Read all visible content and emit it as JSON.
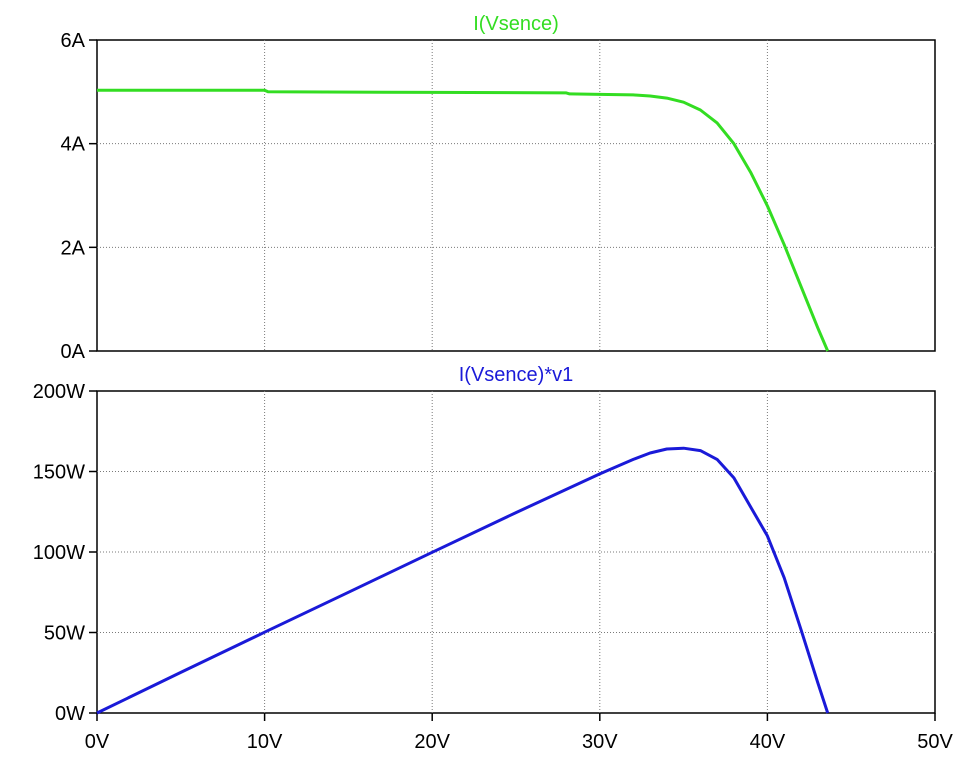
{
  "chart_data": [
    {
      "type": "line",
      "title": "I(Vsence)",
      "title_color": "#33dd22",
      "grid": true,
      "xlim": [
        0,
        50
      ],
      "ylim": [
        0,
        6
      ],
      "y_ticks": [
        {
          "value": 0,
          "label": "0A"
        },
        {
          "value": 2,
          "label": "2A"
        },
        {
          "value": 4,
          "label": "4A"
        },
        {
          "value": 6,
          "label": "6A"
        }
      ],
      "series": [
        {
          "color": "#33dd22",
          "x": [
            0,
            10,
            10.2,
            20,
            28,
            28.2,
            30,
            32,
            33,
            34,
            35,
            36,
            37,
            38,
            39,
            40,
            41,
            42,
            43,
            43.6
          ],
          "y": [
            5.03,
            5.03,
            5.0,
            4.99,
            4.98,
            4.96,
            4.95,
            4.94,
            4.92,
            4.88,
            4.8,
            4.65,
            4.4,
            4.0,
            3.45,
            2.8,
            2.05,
            1.25,
            0.45,
            0
          ]
        }
      ]
    },
    {
      "type": "line",
      "title": "I(Vsence)*v1",
      "title_color": "#1a1ad8",
      "grid": true,
      "xlim": [
        0,
        50
      ],
      "ylim": [
        0,
        200
      ],
      "y_ticks": [
        {
          "value": 0,
          "label": "0W"
        },
        {
          "value": 50,
          "label": "50W"
        },
        {
          "value": 100,
          "label": "100W"
        },
        {
          "value": 150,
          "label": "150W"
        },
        {
          "value": 200,
          "label": "200W"
        }
      ],
      "x_ticks": [
        {
          "value": 0,
          "label": "0V"
        },
        {
          "value": 10,
          "label": "10V"
        },
        {
          "value": 20,
          "label": "20V"
        },
        {
          "value": 30,
          "label": "30V"
        },
        {
          "value": 40,
          "label": "40V"
        },
        {
          "value": 50,
          "label": "50V"
        }
      ],
      "series": [
        {
          "color": "#1a1ad8",
          "x": [
            0,
            5,
            10,
            15,
            20,
            25,
            30,
            32,
            33,
            34,
            35,
            36,
            37,
            38,
            39,
            40,
            41,
            42,
            43,
            43.6
          ],
          "y": [
            0,
            25.2,
            50.2,
            75,
            99.8,
            124.5,
            148.5,
            157.5,
            161.5,
            164,
            164.5,
            163,
            157.5,
            146,
            128,
            110,
            84,
            52,
            19,
            0
          ]
        }
      ]
    }
  ]
}
